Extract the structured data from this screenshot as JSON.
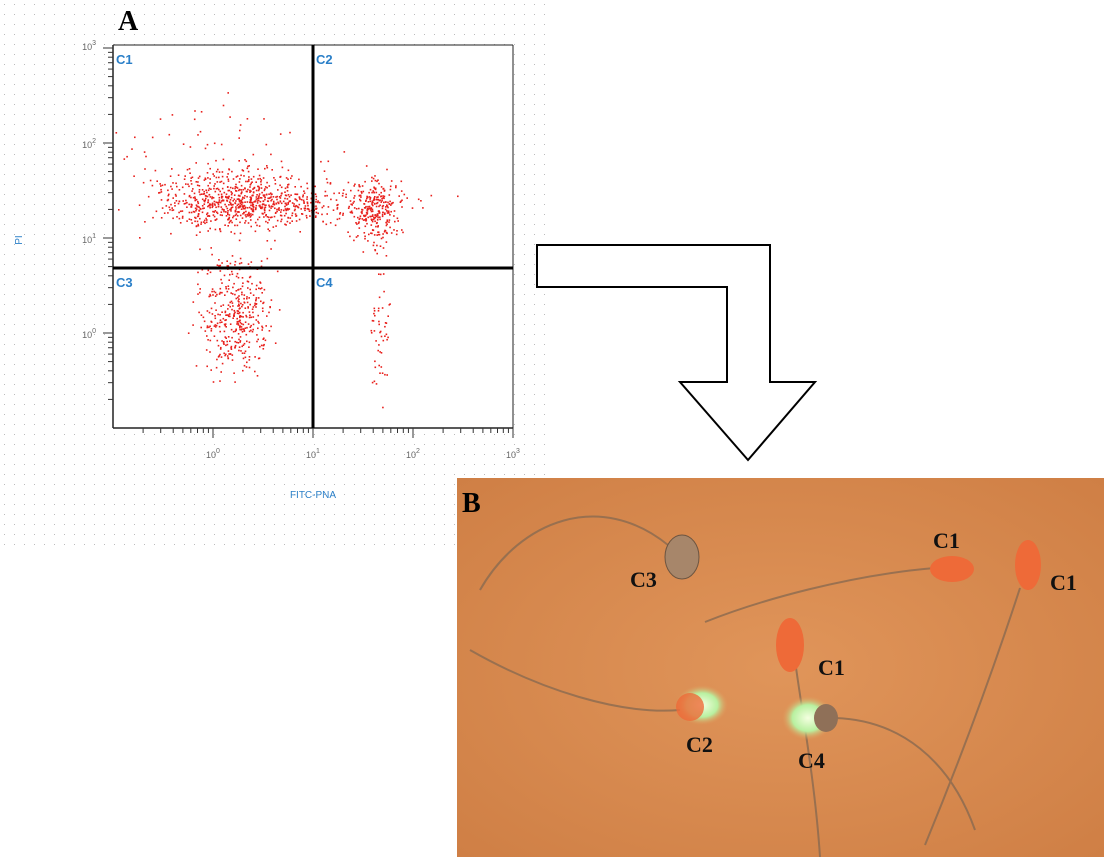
{
  "panel_a": {
    "label": "A",
    "quadrants": [
      "C1",
      "C2",
      "C3",
      "C4"
    ],
    "y_axis_label": "PI",
    "x_axis_label": "FITC-PNA",
    "x_ticks": [
      {
        "base": "10",
        "exponent": "0"
      },
      {
        "base": "10",
        "exponent": "1"
      },
      {
        "base": "10",
        "exponent": "2"
      },
      {
        "base": "10",
        "exponent": "3"
      }
    ],
    "y_ticks": [
      {
        "base": "10",
        "exponent": "3"
      },
      {
        "base": "10",
        "exponent": "2"
      },
      {
        "base": "10",
        "exponent": "1"
      },
      {
        "base": "10",
        "exponent": "0"
      }
    ]
  },
  "panel_b": {
    "label": "B",
    "cell_labels": [
      "C3",
      "C1",
      "C1",
      "C1",
      "C2",
      "C4"
    ]
  }
}
